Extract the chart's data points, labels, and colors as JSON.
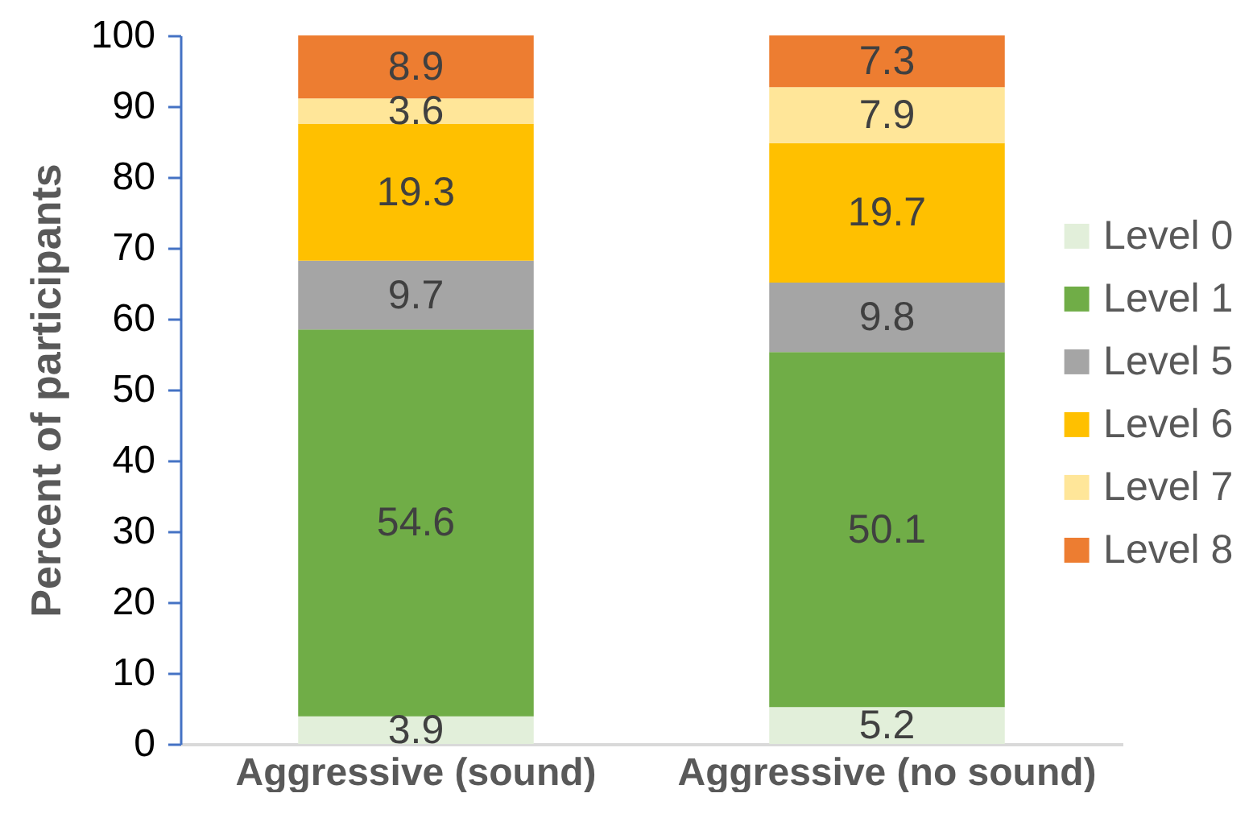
{
  "chart_data": {
    "type": "bar",
    "stacked": true,
    "ylabel": "Percent of participants",
    "categories": [
      "Aggressive (sound)",
      "Aggressive (no sound)"
    ],
    "series": [
      {
        "name": "Level 0",
        "color": "#e2efda",
        "values": [
          3.9,
          5.2
        ]
      },
      {
        "name": "Level 1",
        "color": "#70ad47",
        "values": [
          54.6,
          50.1
        ]
      },
      {
        "name": "Level 5",
        "color": "#a5a5a5",
        "values": [
          9.7,
          9.8
        ]
      },
      {
        "name": "Level 6",
        "color": "#ffc000",
        "values": [
          19.3,
          19.7
        ]
      },
      {
        "name": "Level 7",
        "color": "#ffe699",
        "values": [
          3.6,
          7.9
        ]
      },
      {
        "name": "Level 8",
        "color": "#ed7d31",
        "values": [
          8.9,
          7.3
        ]
      }
    ],
    "ylim": [
      0,
      100
    ],
    "yticks": [
      0,
      10,
      20,
      30,
      40,
      50,
      60,
      70,
      80,
      90,
      100
    ],
    "grid": false,
    "legend": "right",
    "data_labels": true
  }
}
